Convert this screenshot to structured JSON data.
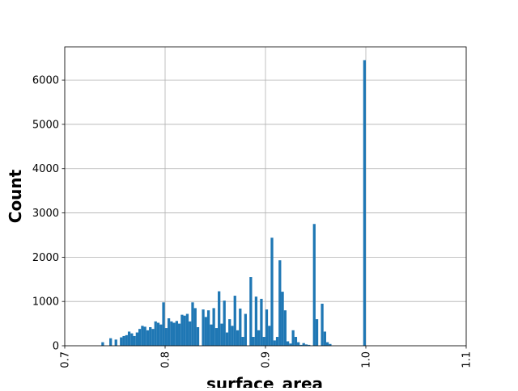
{
  "chart_data": {
    "type": "histogram",
    "x_label": "surface_area",
    "y_label": "Count",
    "color": "#1f77b4",
    "grid": true,
    "xlim": [
      0.7,
      1.1
    ],
    "ylim": [
      0,
      6750
    ],
    "xticks": [
      0.7,
      0.8,
      0.9,
      {
        "value": 1,
        "label": "1.0"
      },
      1.1
    ],
    "yticks": [
      0,
      1000,
      2000,
      3000,
      4000,
      5000,
      6000
    ],
    "bins": [
      0.7365,
      0.739135,
      0.74177,
      0.744405,
      0.74704,
      0.749675,
      0.75231,
      0.754945,
      0.75758,
      0.760215,
      0.76285,
      0.765485,
      0.76812,
      0.770755,
      0.77339,
      0.776025,
      0.77866,
      0.781295,
      0.78393,
      0.786565,
      0.7892,
      0.791835,
      0.79447,
      0.797105,
      0.79974,
      0.802375,
      0.80501,
      0.807645,
      0.81028,
      0.812915,
      0.81555,
      0.818185,
      0.82082,
      0.823455,
      0.82609,
      0.828725,
      0.83136,
      0.833995,
      0.83663,
      0.839265,
      0.8419,
      0.844535,
      0.84717,
      0.849805,
      0.85244,
      0.855075,
      0.85771,
      0.860345,
      0.86298,
      0.865615,
      0.86825,
      0.870885,
      0.87352,
      0.876155,
      0.87879,
      0.881425,
      0.88406,
      0.886695,
      0.88933,
      0.891965,
      0.8946,
      0.897235,
      0.89987,
      0.902505,
      0.90514,
      0.907775,
      0.91041,
      0.913045,
      0.91568,
      0.918315,
      0.92095,
      0.923585,
      0.92622,
      0.928855,
      0.93149,
      0.934125,
      0.93676,
      0.939395,
      0.94203,
      0.944665,
      0.9473,
      0.949935,
      0.95257,
      0.955205,
      0.95784,
      0.960475,
      0.96311,
      0.965745,
      0.96838,
      0.971015,
      0.97365,
      0.976285,
      0.97892,
      0.981555,
      0.98419,
      0.986825,
      0.98946,
      0.992095,
      0.99473,
      0.997365,
      1.0
    ],
    "counts": [
      80,
      0,
      0,
      170,
      0,
      140,
      0,
      190,
      220,
      240,
      320,
      280,
      220,
      300,
      380,
      450,
      430,
      350,
      420,
      380,
      550,
      520,
      480,
      980,
      400,
      620,
      550,
      520,
      560,
      500,
      700,
      680,
      720,
      550,
      980,
      850,
      420,
      0,
      820,
      650,
      800,
      480,
      850,
      400,
      1230,
      500,
      1020,
      300,
      600,
      450,
      1130,
      350,
      840,
      200,
      720,
      0,
      1550,
      200,
      1110,
      350,
      1060,
      200,
      820,
      450,
      2440,
      120,
      200,
      1930,
      1220,
      800,
      100,
      50,
      350,
      200,
      80,
      20,
      60,
      30,
      20,
      0,
      2750,
      600,
      0,
      950,
      320,
      80,
      40,
      0,
      0,
      0,
      0,
      0,
      0,
      0,
      0,
      0,
      0,
      0,
      0,
      6450
    ]
  }
}
